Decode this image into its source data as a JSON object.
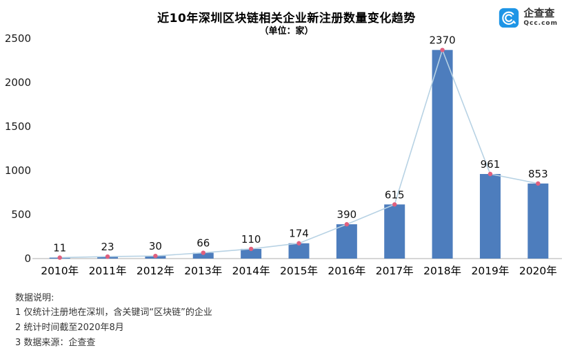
{
  "header": {
    "title": "近10年深圳区块链相关企业新注册数量变化趋势",
    "subtitle": "（单位：家）"
  },
  "logo": {
    "name": "企查查",
    "domain": "Qcc.com",
    "icon_color": "#1e95e6"
  },
  "chart_data": {
    "type": "bar",
    "title": "近10年深圳区块链相关企业新注册数量变化趋势",
    "subtitle": "（单位：家）",
    "categories": [
      "2010年",
      "2011年",
      "2012年",
      "2013年",
      "2014年",
      "2015年",
      "2016年",
      "2017年",
      "2018年",
      "2019年",
      "2020年"
    ],
    "values": [
      11,
      23,
      30,
      66,
      110,
      174,
      390,
      615,
      2370,
      961,
      853
    ],
    "overlay_line": true,
    "xlabel": "",
    "ylabel": "",
    "ylim": [
      0,
      2500
    ],
    "yticks": [
      0,
      500,
      1000,
      1500,
      2000,
      2500
    ],
    "grid": false,
    "legend": "none",
    "colors": {
      "bar": "#4d7dbd",
      "line": "#b7d2e4",
      "dot": "#e0607e",
      "axis": "#c9c9c9",
      "label": "#111111"
    }
  },
  "notes": {
    "heading": "数据说明:",
    "items": [
      "1 仅统计注册地在深圳，含关键词“区块链”的企业",
      "2 统计时间截至2020年8月",
      "3 数据来源：企查查"
    ]
  }
}
